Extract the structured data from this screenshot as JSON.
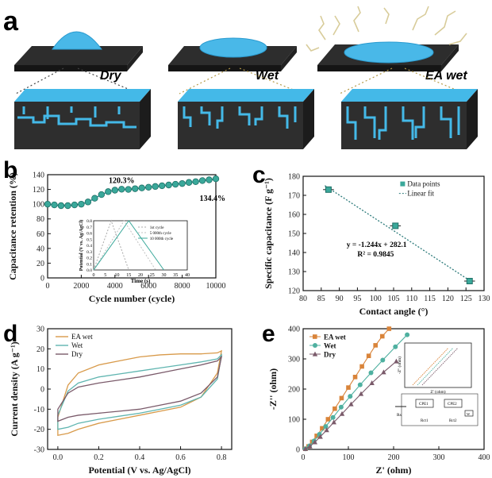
{
  "panels": {
    "a": {
      "letter": "a",
      "labels": [
        "Dry",
        "Wet",
        "EA wet"
      ]
    },
    "b": {
      "letter": "b",
      "annotations": {
        "peak": "120.3%",
        "end": "134.4%"
      },
      "inset": {
        "xlabel": "Time (s)",
        "ylabel": "Potential (V vs. Ag/AgCl)",
        "legend": [
          "1st cycle",
          "5 000th cycle",
          "10 000th cycle"
        ]
      }
    },
    "c": {
      "letter": "c",
      "equation": "y = -1.244x + 282.1",
      "r2": "R² = 0.9845"
    },
    "d": {
      "letter": "d"
    },
    "e": {
      "letter": "e",
      "inset": {
        "ylabel": "-Z'' (ohm)",
        "xlabel": "Z' (ohm)",
        "circuit": [
          "Rs",
          "CPE1",
          "CPE2",
          "Rct1",
          "Rct2",
          "W"
        ]
      }
    }
  },
  "chart_data": [
    {
      "id": "b",
      "type": "line",
      "title": "",
      "xlabel": "Cycle number (cycle)",
      "ylabel": "Capacitance retention (%)",
      "xlim": [
        0,
        10000
      ],
      "ylim": [
        0,
        140
      ],
      "xticks": [
        0,
        2000,
        4000,
        6000,
        8000,
        10000
      ],
      "yticks": [
        0,
        20,
        40,
        60,
        80,
        100,
        120,
        140
      ],
      "series": [
        {
          "name": "retention",
          "x": [
            0,
            400,
            800,
            1200,
            1600,
            2000,
            2400,
            2800,
            3200,
            3600,
            4000,
            4400,
            4800,
            5200,
            5600,
            6000,
            6400,
            6800,
            7200,
            7600,
            8000,
            8400,
            8800,
            9200,
            9600,
            10000
          ],
          "y": [
            100,
            99,
            98,
            98,
            99,
            100,
            103,
            108,
            113,
            117,
            119,
            120.3,
            120,
            121,
            122,
            123,
            124,
            125,
            126,
            127,
            128,
            129.5,
            130.5,
            132,
            133,
            134.4
          ]
        }
      ],
      "inset": {
        "xlim": [
          0,
          40
        ],
        "ylim": [
          0,
          0.8
        ],
        "xticks": [
          0,
          5,
          10,
          15,
          20,
          25,
          30,
          35,
          40
        ],
        "yticks": [
          0.0,
          0.1,
          0.2,
          0.3,
          0.4,
          0.5,
          0.6,
          0.7,
          0.8
        ],
        "series": [
          {
            "name": "1st cycle",
            "x": [
              0,
              7.5,
              15
            ],
            "y": [
              0,
              0.8,
              0
            ]
          },
          {
            "name": "5 000th cycle",
            "x": [
              0,
              13,
              26.5
            ],
            "y": [
              0,
              0.8,
              0
            ]
          },
          {
            "name": "10 000th cycle",
            "x": [
              0,
              15,
              30
            ],
            "y": [
              0,
              0.8,
              0
            ]
          }
        ]
      }
    },
    {
      "id": "c",
      "type": "scatter",
      "xlabel": "Contact angle (°)",
      "ylabel": "Specific capacitance (F g⁻¹)",
      "xlim": [
        80,
        130
      ],
      "ylim": [
        120,
        180
      ],
      "xticks": [
        80,
        85,
        90,
        95,
        100,
        105,
        110,
        115,
        120,
        125,
        130
      ],
      "yticks": [
        120,
        130,
        140,
        150,
        160,
        170,
        180
      ],
      "legend": [
        "Data points",
        "Linear fit"
      ],
      "series": [
        {
          "name": "Data points",
          "x": [
            87,
            105.5,
            126
          ],
          "y": [
            173,
            154,
            125
          ],
          "xerr": [
            1.5,
            1.5,
            1.5
          ]
        },
        {
          "name": "Linear fit",
          "x": [
            86,
            127
          ],
          "y": [
            175.1,
            124.1
          ]
        }
      ]
    },
    {
      "id": "d",
      "type": "line",
      "xlabel": "Potential (V vs. Ag/AgCl)",
      "ylabel": "Current density (A g⁻¹)",
      "xlim": [
        -0.05,
        0.85
      ],
      "ylim": [
        -30,
        30
      ],
      "xticks": [
        0.0,
        0.2,
        0.4,
        0.6,
        0.8
      ],
      "yticks": [
        -30,
        -20,
        -10,
        0,
        10,
        20,
        30
      ],
      "series": [
        {
          "name": "EA wet",
          "color": "#d89a4a",
          "upper": {
            "x": [
              0,
              0.05,
              0.1,
              0.2,
              0.3,
              0.4,
              0.5,
              0.6,
              0.7,
              0.78,
              0.8
            ],
            "y": [
              -14,
              2,
              8,
              12,
              14,
              16,
              17,
              17.5,
              17.5,
              18,
              19
            ]
          },
          "lower": {
            "x": [
              0.8,
              0.78,
              0.7,
              0.6,
              0.5,
              0.4,
              0.3,
              0.2,
              0.1,
              0.05,
              0
            ],
            "y": [
              19,
              8,
              -4,
              -9,
              -11,
              -13,
              -15,
              -17,
              -20,
              -22,
              -23
            ]
          }
        },
        {
          "name": "Wet",
          "color": "#5fb5b0",
          "upper": {
            "x": [
              0,
              0.05,
              0.1,
              0.2,
              0.3,
              0.4,
              0.5,
              0.6,
              0.7,
              0.78,
              0.8
            ],
            "y": [
              -13,
              -1,
              3,
              6,
              7.5,
              9,
              10.5,
              12,
              13.5,
              15,
              17
            ]
          },
          "lower": {
            "x": [
              0.8,
              0.78,
              0.7,
              0.6,
              0.5,
              0.4,
              0.3,
              0.2,
              0.1,
              0.05,
              0
            ],
            "y": [
              17,
              5,
              -4,
              -8,
              -10,
              -12,
              -13.5,
              -15,
              -17,
              -19,
              -20
            ]
          }
        },
        {
          "name": "Dry",
          "color": "#7a5a6a",
          "upper": {
            "x": [
              0,
              0.05,
              0.1,
              0.2,
              0.3,
              0.4,
              0.5,
              0.6,
              0.7,
              0.78,
              0.8
            ],
            "y": [
              -10,
              -2,
              1,
              3,
              4.5,
              6,
              8,
              10,
              12,
              14,
              16
            ]
          },
          "lower": {
            "x": [
              0.8,
              0.78,
              0.7,
              0.6,
              0.5,
              0.4,
              0.3,
              0.2,
              0.1,
              0.05,
              0
            ],
            "y": [
              16,
              6,
              -2,
              -6,
              -8,
              -10,
              -11,
              -12,
              -13,
              -14,
              -16
            ]
          }
        }
      ]
    },
    {
      "id": "e",
      "type": "line",
      "xlabel": "Z' (ohm)",
      "ylabel": "-Z'' (ohm)",
      "xlim": [
        0,
        400
      ],
      "ylim": [
        0,
        400
      ],
      "xticks": [
        0,
        100,
        200,
        300,
        400
      ],
      "yticks": [
        0,
        100,
        200,
        300,
        400
      ],
      "series": [
        {
          "name": "EA wet",
          "color": "#d9843a",
          "marker": "square",
          "x": [
            5,
            12,
            20,
            30,
            42,
            55,
            70,
            85,
            100,
            115,
            130,
            145,
            160,
            175,
            190
          ],
          "y": [
            2,
            10,
            25,
            45,
            70,
            100,
            135,
            170,
            205,
            240,
            275,
            310,
            345,
            375,
            400
          ]
        },
        {
          "name": "Wet",
          "color": "#4fb0a0",
          "marker": "circle",
          "x": [
            5,
            14,
            24,
            36,
            50,
            66,
            84,
            104,
            126,
            150,
            176,
            204,
            230
          ],
          "y": [
            2,
            12,
            28,
            50,
            76,
            106,
            140,
            176,
            214,
            254,
            296,
            340,
            380
          ]
        },
        {
          "name": "Dry",
          "color": "#7a5a6a",
          "marker": "triangle",
          "x": [
            5,
            15,
            26,
            38,
            52,
            68,
            86,
            106,
            128,
            152,
            178,
            206
          ],
          "y": [
            2,
            10,
            24,
            42,
            64,
            90,
            118,
            150,
            184,
            220,
            256,
            292
          ]
        }
      ]
    }
  ]
}
